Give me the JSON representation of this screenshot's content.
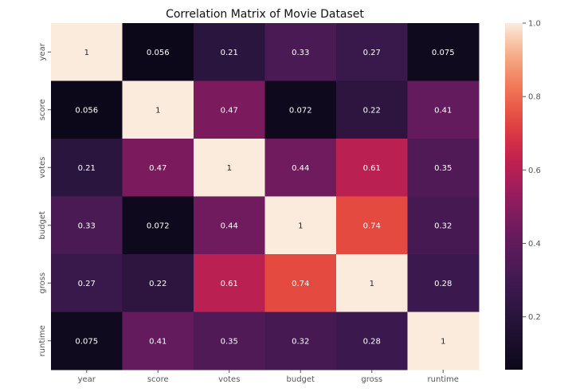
{
  "chart_data": {
    "type": "heatmap",
    "title": "Correlation Matrix of Movie Dataset",
    "xlabel": "",
    "ylabel": "",
    "row_labels": [
      "year",
      "score",
      "votes",
      "budget",
      "gross",
      "runtime"
    ],
    "column_labels": [
      "year",
      "score",
      "votes",
      "budget",
      "gross",
      "runtime"
    ],
    "values": [
      [
        1,
        0.056,
        0.21,
        0.33,
        0.27,
        0.075
      ],
      [
        0.056,
        1,
        0.47,
        0.072,
        0.22,
        0.41
      ],
      [
        0.21,
        0.47,
        1,
        0.44,
        0.61,
        0.35
      ],
      [
        0.33,
        0.072,
        0.44,
        1,
        0.74,
        0.32
      ],
      [
        0.27,
        0.22,
        0.61,
        0.74,
        1,
        0.28
      ],
      [
        0.075,
        0.41,
        0.35,
        0.32,
        0.28,
        1
      ]
    ],
    "value_labels": [
      [
        "1",
        "0.056",
        "0.21",
        "0.33",
        "0.27",
        "0.075"
      ],
      [
        "0.056",
        "1",
        "0.47",
        "0.072",
        "0.22",
        "0.41"
      ],
      [
        "0.21",
        "0.47",
        "1",
        "0.44",
        "0.61",
        "0.35"
      ],
      [
        "0.33",
        "0.072",
        "0.44",
        "1",
        "0.74",
        "0.32"
      ],
      [
        "0.27",
        "0.22",
        "0.61",
        "0.74",
        "1",
        "0.28"
      ],
      [
        "0.075",
        "0.41",
        "0.35",
        "0.32",
        "0.28",
        "1"
      ]
    ],
    "colorbar": {
      "min": 0.056,
      "max": 1.0,
      "ticks": [
        0.2,
        0.4,
        0.6,
        0.8,
        1.0
      ],
      "tick_labels": [
        "0.2",
        "0.4",
        "0.6",
        "0.8",
        "1.0"
      ],
      "colormap": "rocket"
    },
    "annotated": true,
    "grid": false,
    "legend": "colorbar-right"
  }
}
